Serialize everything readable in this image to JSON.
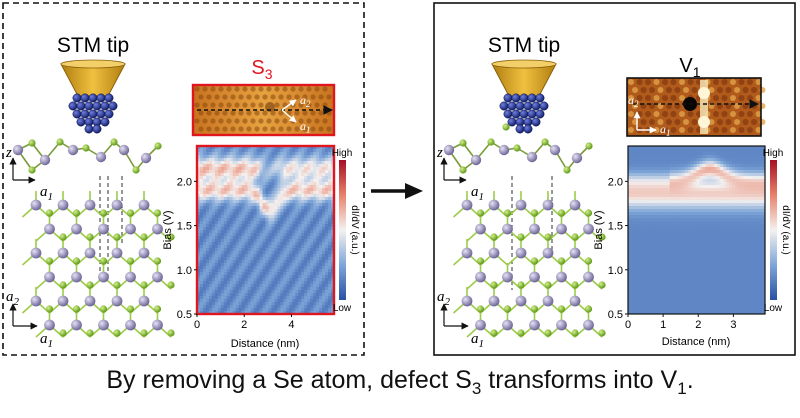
{
  "colors": {
    "tip_gold": "#d9a520",
    "tip_ball": "#1c2a8a",
    "se_atom": "#8bc34a",
    "metal_atom": "#9a92c2",
    "map_high": "#b2182b",
    "map_low": "#2c5aa8",
    "border_red": "#e0161f"
  },
  "left_panel": {
    "tip_label": "STM tip",
    "defect_label": "S",
    "defect_sub": "3",
    "axis_z": "z",
    "axis_a1": "a",
    "axis_a1_sub": "1",
    "axis_a2": "a",
    "axis_a2_sub": "2",
    "inset_a1": "a",
    "inset_a1_sub": "1",
    "inset_a2": "a",
    "inset_a2_sub": "2"
  },
  "right_panel": {
    "tip_label": "STM tip",
    "defect_label": "V",
    "defect_sub": "1",
    "axis_z": "z",
    "axis_a1": "a",
    "axis_a1_sub": "1",
    "axis_a2": "a",
    "axis_a2_sub": "2",
    "inset_a1": "a",
    "inset_a1_sub": "1",
    "inset_a2": "a",
    "inset_a2_sub": "2"
  },
  "chart_data": [
    {
      "type": "heatmap",
      "xlabel": "Distance (nm)",
      "ylabel": "Bias (V)",
      "xlim": [
        0,
        5.8
      ],
      "ylim": [
        0.5,
        2.4
      ],
      "x_ticks": [
        "0",
        "2",
        "4"
      ],
      "y_ticks": [
        "0.5",
        "1.0",
        "1.5",
        "2.0"
      ],
      "colorbar": {
        "label": "dI/dV (a.u.)",
        "high": "High",
        "low": "Low"
      }
    },
    {
      "type": "heatmap",
      "xlabel": "Distance (nm)",
      "ylabel": "Bias (V)",
      "xlim": [
        0,
        3.9
      ],
      "ylim": [
        0.5,
        2.4
      ],
      "x_ticks": [
        "0",
        "1",
        "2",
        "3"
      ],
      "y_ticks": [
        "0.5",
        "1.0",
        "1.5",
        "2.0"
      ],
      "colorbar": {
        "label": "dI/dV (a.u.)",
        "high": "High",
        "low": "Low"
      }
    }
  ],
  "caption": {
    "part1": "By removing a Se atom, defect",
    "s_label": "S",
    "s_sub": "3",
    "part2": "transforms into",
    "v_label": "V",
    "v_sub": "1",
    "end": "."
  }
}
